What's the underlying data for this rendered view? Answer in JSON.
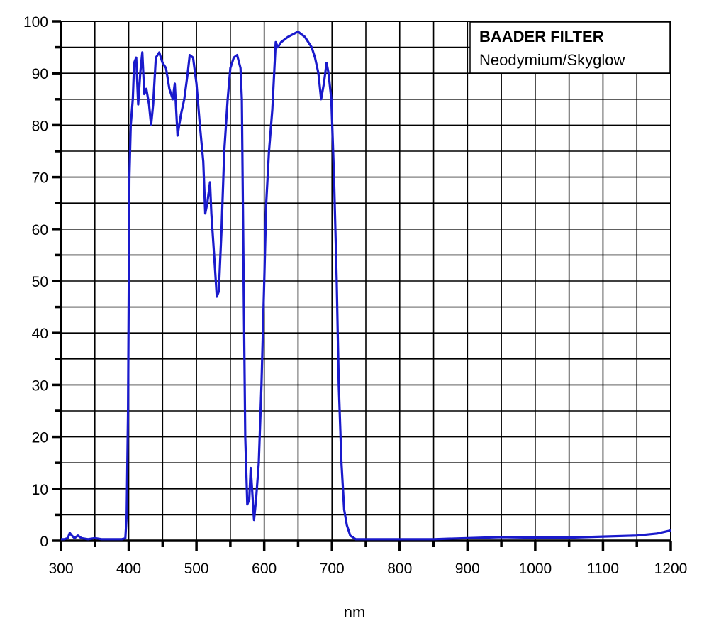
{
  "chart_data": {
    "type": "line",
    "title": "BAADER FILTER",
    "subtitle": "Neodymium/Skyglow",
    "xlabel": "nm",
    "ylabel": "",
    "xlim": [
      300,
      1200
    ],
    "ylim": [
      0,
      100
    ],
    "xticks": [
      300,
      400,
      500,
      600,
      700,
      800,
      900,
      1000,
      1100,
      1200
    ],
    "yticks": [
      0,
      10,
      20,
      30,
      40,
      50,
      60,
      70,
      80,
      90,
      100
    ],
    "grid": true,
    "legend": "top-right",
    "series": [
      {
        "color": "#1a1acc",
        "x": [
          300,
          305,
          310,
          313,
          316,
          320,
          325,
          330,
          340,
          350,
          360,
          370,
          380,
          390,
          395,
          397,
          399,
          401,
          403,
          406,
          408,
          411,
          414,
          417,
          420,
          423,
          426,
          430,
          433,
          436,
          440,
          445,
          450,
          455,
          460,
          465,
          468,
          472,
          477,
          482,
          487,
          490,
          495,
          500,
          505,
          510,
          513,
          516,
          520,
          522,
          526,
          530,
          533,
          537,
          541,
          546,
          550,
          555,
          560,
          565,
          567,
          570,
          572,
          575,
          578,
          580,
          582,
          585,
          588,
          592,
          596,
          600,
          603,
          607,
          612,
          617,
          620,
          625,
          635,
          650,
          660,
          670,
          675,
          680,
          684,
          688,
          692,
          695,
          699,
          703,
          707,
          710,
          714,
          718,
          722,
          727,
          735,
          750,
          800,
          850,
          900,
          950,
          1000,
          1050,
          1100,
          1150,
          1180,
          1200
        ],
        "y": [
          0.3,
          0.3,
          0.5,
          1.5,
          1,
          0.5,
          1,
          0.5,
          0.3,
          0.5,
          0.3,
          0.3,
          0.3,
          0.3,
          0.5,
          5,
          25,
          70,
          80,
          85,
          92,
          93,
          84,
          90,
          94,
          86,
          87,
          84,
          80,
          84,
          93,
          94,
          92,
          91,
          87,
          85,
          88,
          78,
          82,
          85,
          90,
          93.5,
          93,
          88,
          80,
          73,
          63,
          65,
          69,
          63,
          55,
          47,
          48,
          60,
          75,
          85,
          91,
          93,
          93.5,
          91,
          85,
          45,
          20,
          7,
          8,
          14,
          10,
          4,
          8,
          15,
          30,
          50,
          65,
          75,
          83,
          96,
          95,
          96,
          97,
          98,
          97,
          95,
          93,
          90,
          85,
          88,
          92,
          90,
          85,
          70,
          50,
          30,
          15,
          6,
          3,
          1,
          0.3,
          0.3,
          0.3,
          0.3,
          0.5,
          0.7,
          0.6,
          0.6,
          0.8,
          1,
          1.4,
          2
        ]
      }
    ]
  }
}
